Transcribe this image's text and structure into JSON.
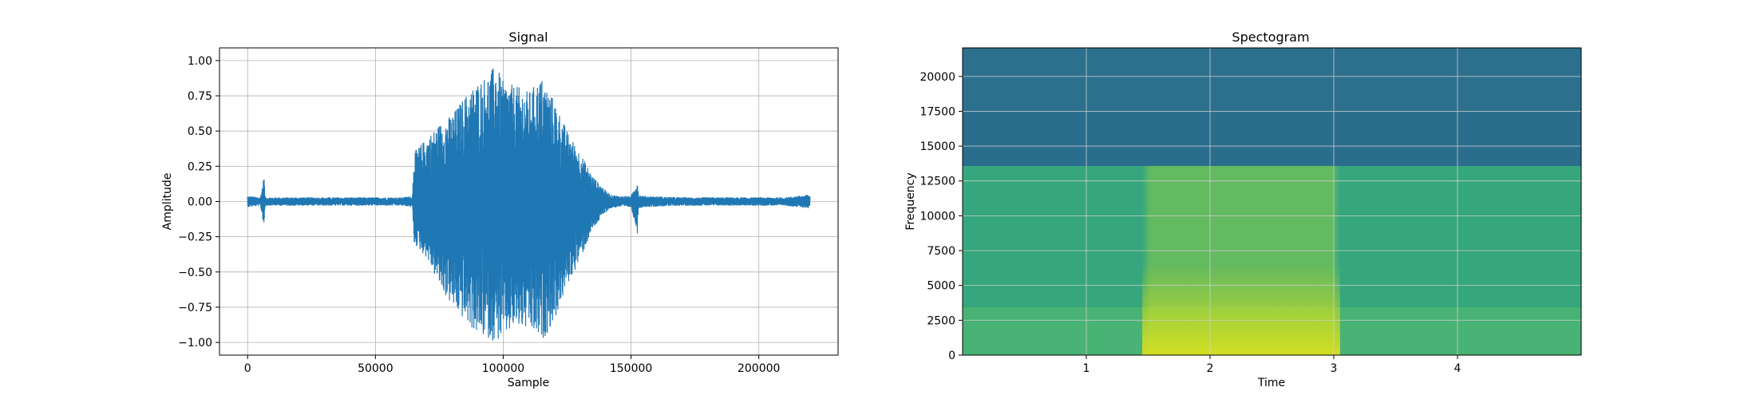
{
  "chart_data": [
    {
      "type": "line",
      "title": "Signal",
      "xlabel": "Sample",
      "ylabel": "Amplitude",
      "xlim": [
        -11000,
        231000
      ],
      "ylim": [
        -1.09,
        1.09
      ],
      "xticks": [
        0,
        50000,
        100000,
        150000,
        200000
      ],
      "xtick_labels": [
        "0",
        "50000",
        "100000",
        "150000",
        "200000"
      ],
      "yticks": [
        1.0,
        0.75,
        0.5,
        0.25,
        0.0,
        -0.25,
        -0.5,
        -0.75,
        -1.0
      ],
      "ytick_labels": [
        "1.00",
        "0.75",
        "0.50",
        "0.25",
        "0.00",
        "−0.25",
        "−0.50",
        "−0.75",
        "−1.00"
      ],
      "grid": true,
      "color": "#1f77b4",
      "series": [
        {
          "x": [
            0,
            5000,
            6500,
            6700,
            7000,
            20000,
            40000,
            60000,
            64500,
            65000,
            70000,
            75000,
            80000,
            85000,
            90000,
            95000,
            97000,
            100000,
            105000,
            110000,
            115000,
            120000,
            125000,
            130000,
            135000,
            140000,
            142000,
            145000,
            150000,
            152500,
            153000,
            155000,
            170000,
            190000,
            210000,
            220000
          ],
          "upper": [
            0.04,
            0.03,
            0.19,
            0.05,
            0.03,
            0.03,
            0.03,
            0.03,
            0.04,
            0.35,
            0.45,
            0.55,
            0.62,
            0.75,
            0.85,
            0.92,
            0.98,
            0.85,
            0.82,
            0.78,
            0.88,
            0.72,
            0.5,
            0.35,
            0.18,
            0.08,
            0.05,
            0.04,
            0.04,
            0.15,
            0.05,
            0.04,
            0.03,
            0.03,
            0.03,
            0.05
          ],
          "lower": [
            -0.04,
            -0.03,
            -0.19,
            -0.05,
            -0.03,
            -0.03,
            -0.03,
            -0.03,
            -0.04,
            -0.3,
            -0.4,
            -0.6,
            -0.75,
            -0.85,
            -0.95,
            -0.98,
            -1.0,
            -0.97,
            -0.9,
            -0.92,
            -1.0,
            -0.85,
            -0.6,
            -0.42,
            -0.2,
            -0.08,
            -0.05,
            -0.04,
            -0.04,
            -0.23,
            -0.05,
            -0.04,
            -0.03,
            -0.03,
            -0.03,
            -0.05
          ]
        }
      ]
    },
    {
      "type": "heatmap",
      "title": "Spectogram",
      "xlabel": "Time",
      "ylabel": "Frequency",
      "xlim": [
        0.0,
        5.0
      ],
      "ylim": [
        0,
        22050
      ],
      "xticks": [
        1,
        2,
        3,
        4
      ],
      "xtick_labels": [
        "1",
        "2",
        "3",
        "4"
      ],
      "yticks": [
        0,
        2500,
        5000,
        7500,
        10000,
        12500,
        15000,
        17500,
        20000
      ],
      "ytick_labels": [
        "0",
        "2500",
        "5000",
        "7500",
        "10000",
        "12500",
        "15000",
        "17500",
        "20000"
      ],
      "grid": true,
      "colormap": "viridis",
      "speech_time_range": [
        1.45,
        3.05
      ],
      "band_edge_frequency": 13600,
      "intensity_scale": [
        0,
        1
      ],
      "z_description": "low intensity above 13600 Hz, mid-level noise floor below, high intensity in voiced region 1.45–3.05 s especially below 1500 Hz"
    }
  ]
}
